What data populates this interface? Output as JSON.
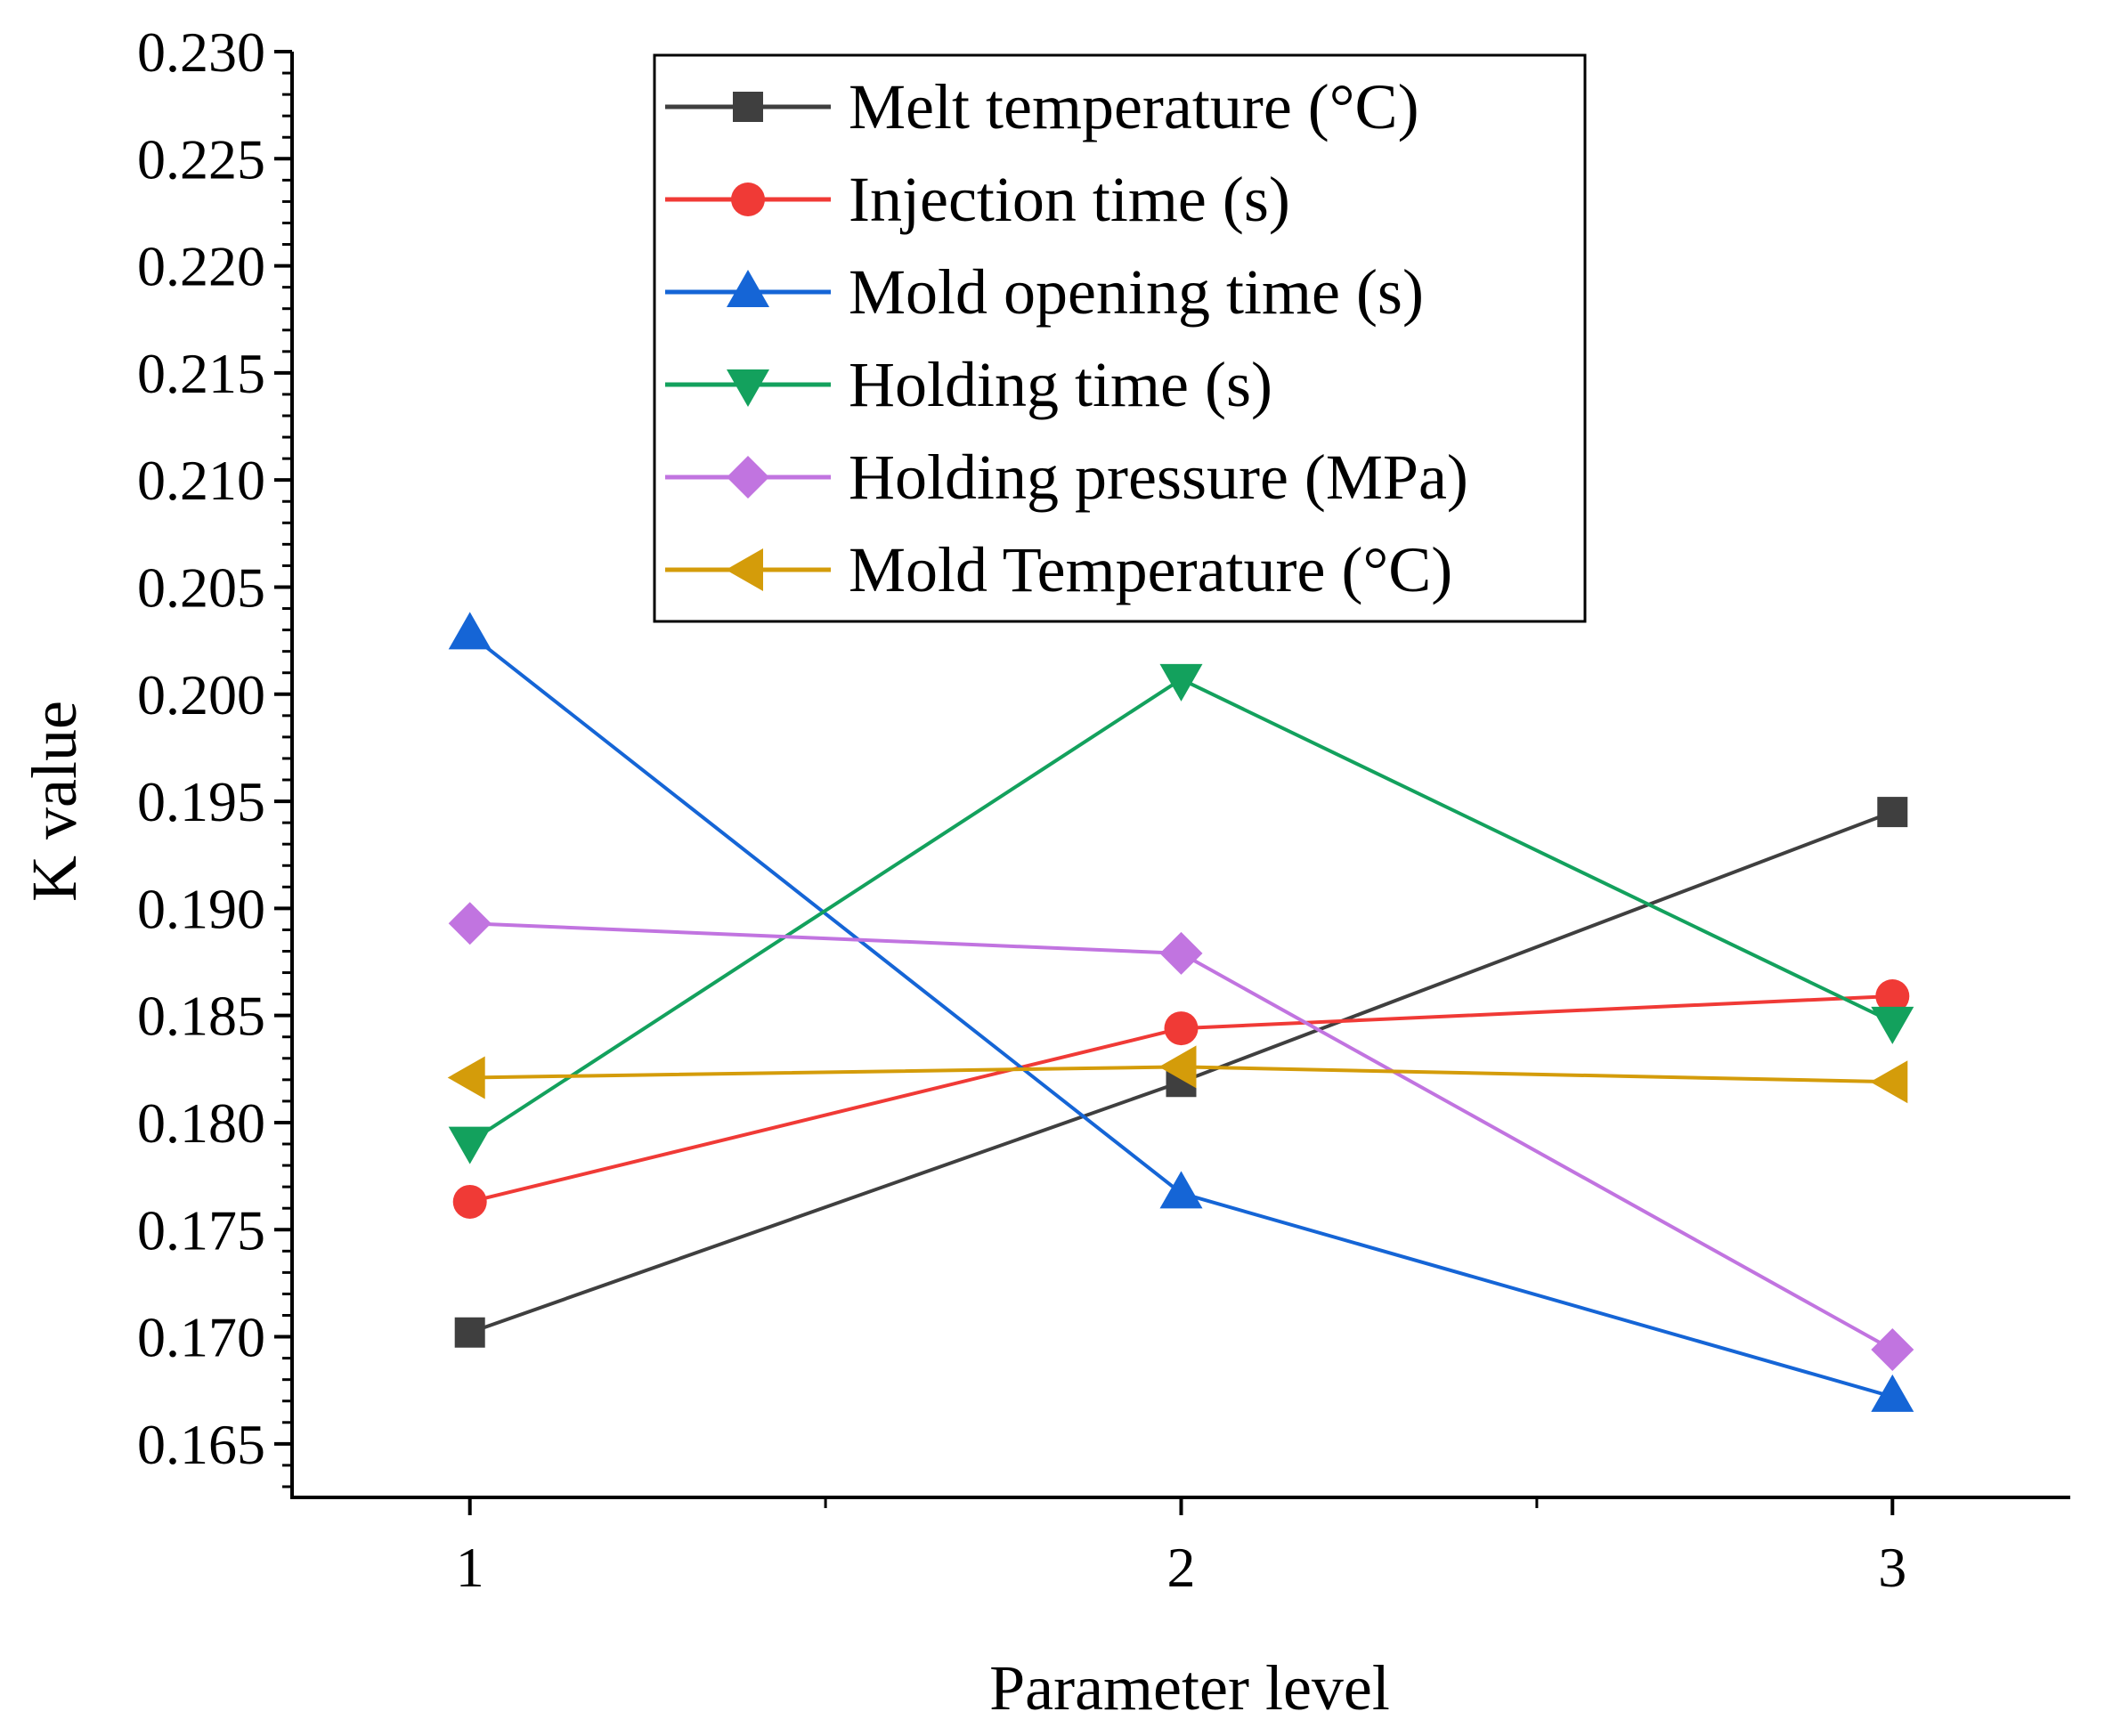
{
  "chart_data": {
    "type": "line",
    "title": "",
    "xlabel": "Parameter level",
    "ylabel": "K value",
    "x": [
      1,
      2,
      3
    ],
    "xlim": [
      0.75,
      3.25
    ],
    "xticks": [
      "1",
      "2",
      "3"
    ],
    "ylim": [
      0.1625,
      0.23
    ],
    "yticks": [
      "0.165",
      "0.170",
      "0.175",
      "0.180",
      "0.185",
      "0.190",
      "0.195",
      "0.200",
      "0.205",
      "0.210",
      "0.215",
      "0.220",
      "0.225",
      "0.230"
    ],
    "grid": false,
    "legend_position": "top-center",
    "series": [
      {
        "name": "Melt temperature (°C)",
        "color": "#3f3f3f",
        "marker": "square",
        "values": [
          0.1702,
          0.1819,
          0.1945
        ]
      },
      {
        "name": "Injection time (s)",
        "color": "#f03a36",
        "marker": "circle",
        "values": [
          0.1763,
          0.1844,
          0.1859
        ]
      },
      {
        "name": "Mold opening time (s)",
        "color": "#1565d6",
        "marker": "triangle-up",
        "values": [
          0.2028,
          0.1767,
          0.1672
        ]
      },
      {
        "name": "Holding time (s)",
        "color": "#13a15d",
        "marker": "triangle-down",
        "values": [
          0.1791,
          0.2007,
          0.1847
        ]
      },
      {
        "name": "Holding pressure (MPa)",
        "color": "#c174e0",
        "marker": "diamond",
        "values": [
          0.1893,
          0.1879,
          0.1694
        ]
      },
      {
        "name": "Mold Temperature (°C)",
        "color": "#d49c0a",
        "marker": "triangle-left",
        "values": [
          0.1821,
          0.1826,
          0.1819
        ]
      }
    ]
  }
}
